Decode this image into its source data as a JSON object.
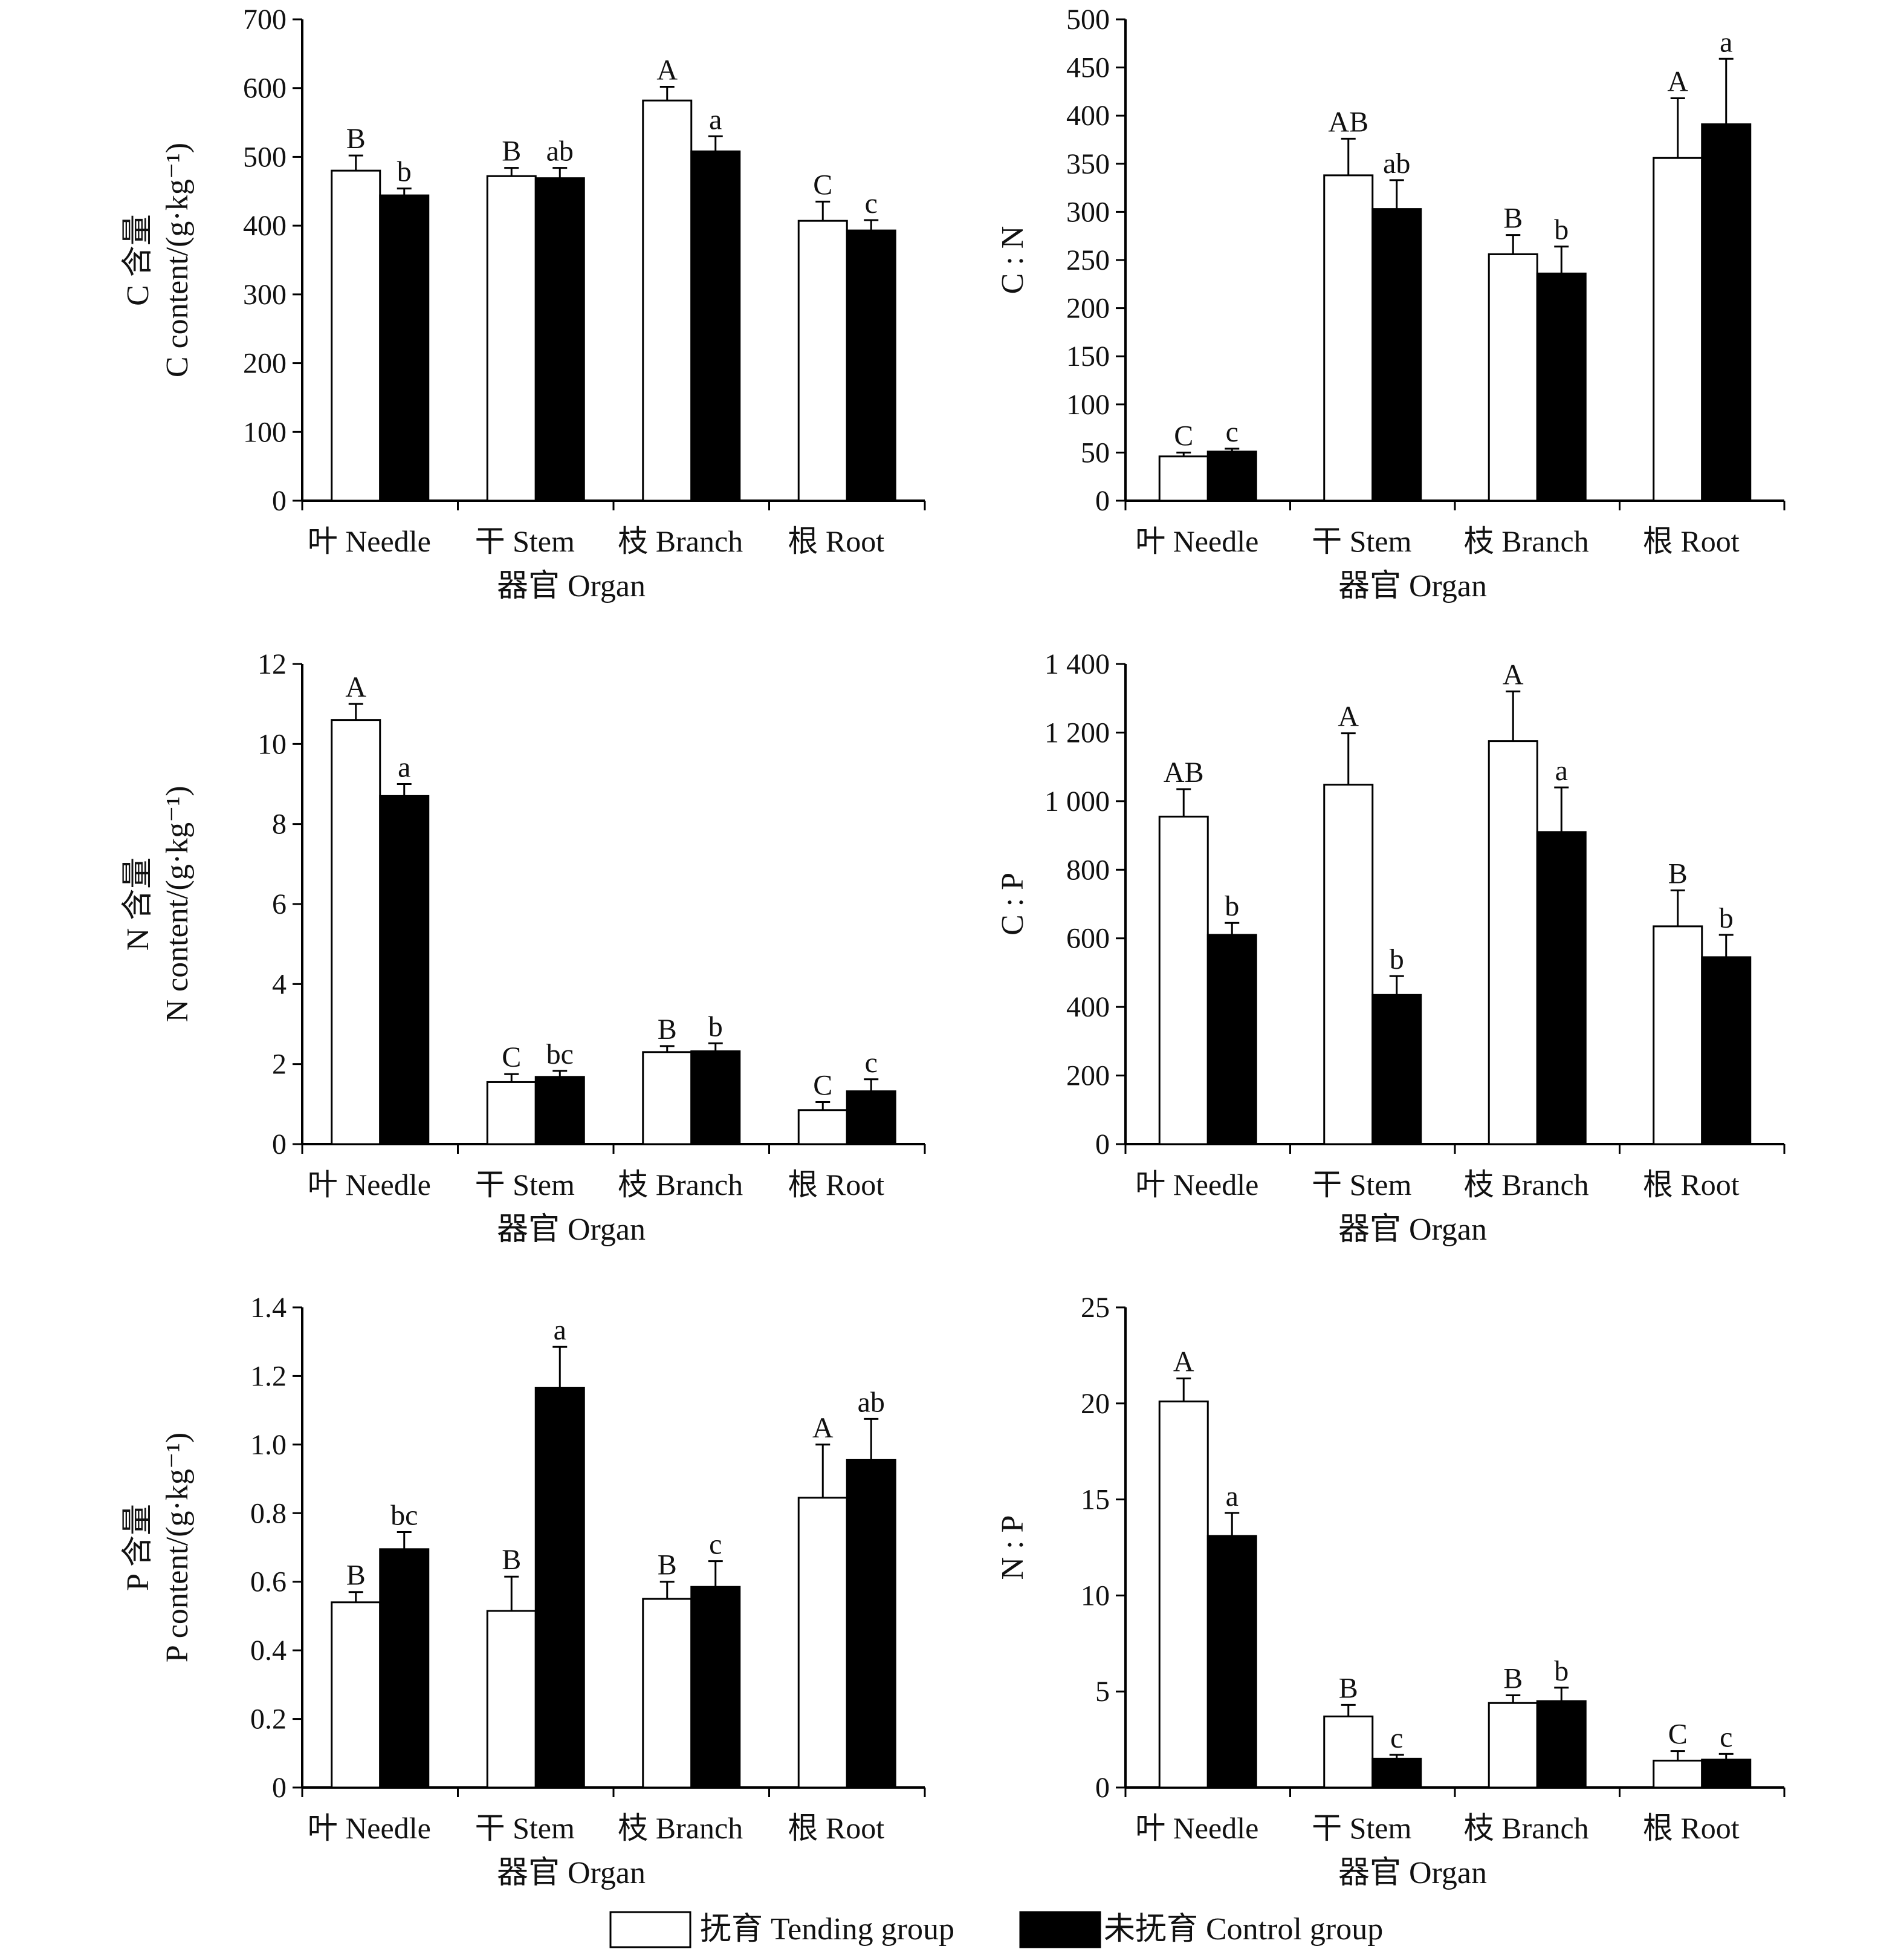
{
  "legend": {
    "tending": {
      "label": "抚育 Tending group",
      "color": "#ffffff"
    },
    "control": {
      "label": "未抚育 Control group",
      "color": "#000000"
    }
  },
  "chart_data": [
    {
      "id": "c-content",
      "type": "bar",
      "categories": [
        "叶 Needle",
        "干 Stem",
        "枝 Branch",
        "根 Root"
      ],
      "xlabel": "器官 Organ",
      "ylabel_cn": "C 含量",
      "ylabel_en": "C content/(g·kg⁻¹)",
      "ylim": [
        0,
        700
      ],
      "yticks": [
        0,
        100,
        200,
        300,
        400,
        500,
        600,
        700
      ],
      "ytick_labels": [
        "0",
        "100",
        "200",
        "300",
        "400",
        "500",
        "600",
        "700"
      ],
      "series": [
        {
          "name": "抚育 Tending group",
          "values": [
            480,
            472,
            582,
            407
          ],
          "errors": [
            22,
            12,
            20,
            28
          ],
          "letters": [
            "B",
            "B",
            "A",
            "C"
          ]
        },
        {
          "name": "未抚育 Control group",
          "values": [
            444,
            469,
            508,
            393
          ],
          "errors": [
            10,
            15,
            22,
            15
          ],
          "letters": [
            "b",
            "ab",
            "a",
            "c"
          ]
        }
      ]
    },
    {
      "id": "c-n-ratio",
      "type": "bar",
      "categories": [
        "叶 Needle",
        "干 Stem",
        "枝 Branch",
        "根 Root"
      ],
      "xlabel": "器官 Organ",
      "ylabel_cn": "",
      "ylabel_en": "C : N",
      "ylim": [
        0,
        500
      ],
      "yticks": [
        0,
        50,
        100,
        150,
        200,
        250,
        300,
        350,
        400,
        450,
        500
      ],
      "ytick_labels": [
        "0",
        "50",
        "100",
        "150",
        "200",
        "250",
        "300",
        "350",
        "400",
        "450",
        "500"
      ],
      "series": [
        {
          "name": "抚育 Tending group",
          "values": [
            46,
            338,
            256,
            356
          ],
          "errors": [
            4,
            38,
            20,
            62
          ],
          "letters": [
            "C",
            "AB",
            "B",
            "A"
          ]
        },
        {
          "name": "未抚育 Control group",
          "values": [
            51,
            303,
            236,
            391
          ],
          "errors": [
            3,
            30,
            28,
            68
          ],
          "letters": [
            "c",
            "ab",
            "b",
            "a"
          ]
        }
      ]
    },
    {
      "id": "n-content",
      "type": "bar",
      "categories": [
        "叶 Needle",
        "干 Stem",
        "枝 Branch",
        "根 Root"
      ],
      "xlabel": "器官 Organ",
      "ylabel_cn": "N 含量",
      "ylabel_en": "N content/(g·kg⁻¹)",
      "ylim": [
        0,
        12
      ],
      "yticks": [
        0,
        2,
        4,
        6,
        8,
        10,
        12
      ],
      "ytick_labels": [
        "0",
        "2",
        "4",
        "6",
        "8",
        "10",
        "12"
      ],
      "series": [
        {
          "name": "抚育 Tending group",
          "values": [
            10.6,
            1.55,
            2.3,
            0.85
          ],
          "errors": [
            0.4,
            0.2,
            0.15,
            0.2
          ],
          "letters": [
            "A",
            "C",
            "B",
            "C"
          ]
        },
        {
          "name": "未抚育 Control group",
          "values": [
            8.7,
            1.68,
            2.32,
            1.32
          ],
          "errors": [
            0.3,
            0.15,
            0.2,
            0.3
          ],
          "letters": [
            "a",
            "bc",
            "b",
            "c"
          ]
        }
      ]
    },
    {
      "id": "c-p-ratio",
      "type": "bar",
      "categories": [
        "叶 Needle",
        "干 Stem",
        "枝 Branch",
        "根 Root"
      ],
      "xlabel": "器官 Organ",
      "ylabel_cn": "",
      "ylabel_en": "C : P",
      "ylim": [
        0,
        1400
      ],
      "yticks": [
        0,
        200,
        400,
        600,
        800,
        1000,
        1200,
        1400
      ],
      "ytick_labels": [
        "0",
        "200",
        "400",
        "600",
        "800",
        "1 000",
        "1 200",
        "1 400"
      ],
      "series": [
        {
          "name": "抚育 Tending group",
          "values": [
            955,
            1048,
            1175,
            635
          ],
          "errors": [
            80,
            150,
            145,
            105
          ],
          "letters": [
            "AB",
            "A",
            "A",
            "B"
          ]
        },
        {
          "name": "未抚育 Control group",
          "values": [
            610,
            435,
            910,
            545
          ],
          "errors": [
            35,
            55,
            130,
            65
          ],
          "letters": [
            "b",
            "b",
            "a",
            "b"
          ]
        }
      ]
    },
    {
      "id": "p-content",
      "type": "bar",
      "categories": [
        "叶 Needle",
        "干 Stem",
        "枝 Branch",
        "根 Root"
      ],
      "xlabel": "器官 Organ",
      "ylabel_cn": "P 含量",
      "ylabel_en": "P content/(g·kg⁻¹)",
      "ylim": [
        0,
        1.4
      ],
      "yticks": [
        0,
        0.2,
        0.4,
        0.6,
        0.8,
        1.0,
        1.2,
        1.4
      ],
      "ytick_labels": [
        "0",
        "0.2",
        "0.4",
        "0.6",
        "0.8",
        "1.0",
        "1.2",
        "1.4"
      ],
      "series": [
        {
          "name": "抚育 Tending group",
          "values": [
            0.54,
            0.515,
            0.55,
            0.845
          ],
          "errors": [
            0.03,
            0.1,
            0.05,
            0.155
          ],
          "letters": [
            "B",
            "B",
            "B",
            "A"
          ]
        },
        {
          "name": "未抚育 Control group",
          "values": [
            0.695,
            1.165,
            0.585,
            0.955
          ],
          "errors": [
            0.05,
            0.12,
            0.075,
            0.12
          ],
          "letters": [
            "bc",
            "a",
            "c",
            "ab"
          ]
        }
      ]
    },
    {
      "id": "n-p-ratio",
      "type": "bar",
      "categories": [
        "叶 Needle",
        "干 Stem",
        "枝 Branch",
        "根 Root"
      ],
      "xlabel": "器官 Organ",
      "ylabel_cn": "",
      "ylabel_en": "N : P",
      "ylim": [
        0,
        25
      ],
      "yticks": [
        0,
        5,
        10,
        15,
        20,
        25
      ],
      "ytick_labels": [
        "0",
        "5",
        "10",
        "15",
        "20",
        "25"
      ],
      "series": [
        {
          "name": "抚育 Tending group",
          "values": [
            20.1,
            3.7,
            4.4,
            1.4
          ],
          "errors": [
            1.2,
            0.6,
            0.4,
            0.5
          ],
          "letters": [
            "A",
            "B",
            "B",
            "C"
          ]
        },
        {
          "name": "未抚育 Control group",
          "values": [
            13.1,
            1.5,
            4.5,
            1.45
          ],
          "errors": [
            1.2,
            0.2,
            0.7,
            0.3
          ],
          "letters": [
            "a",
            "c",
            "b",
            "c"
          ]
        }
      ]
    }
  ]
}
